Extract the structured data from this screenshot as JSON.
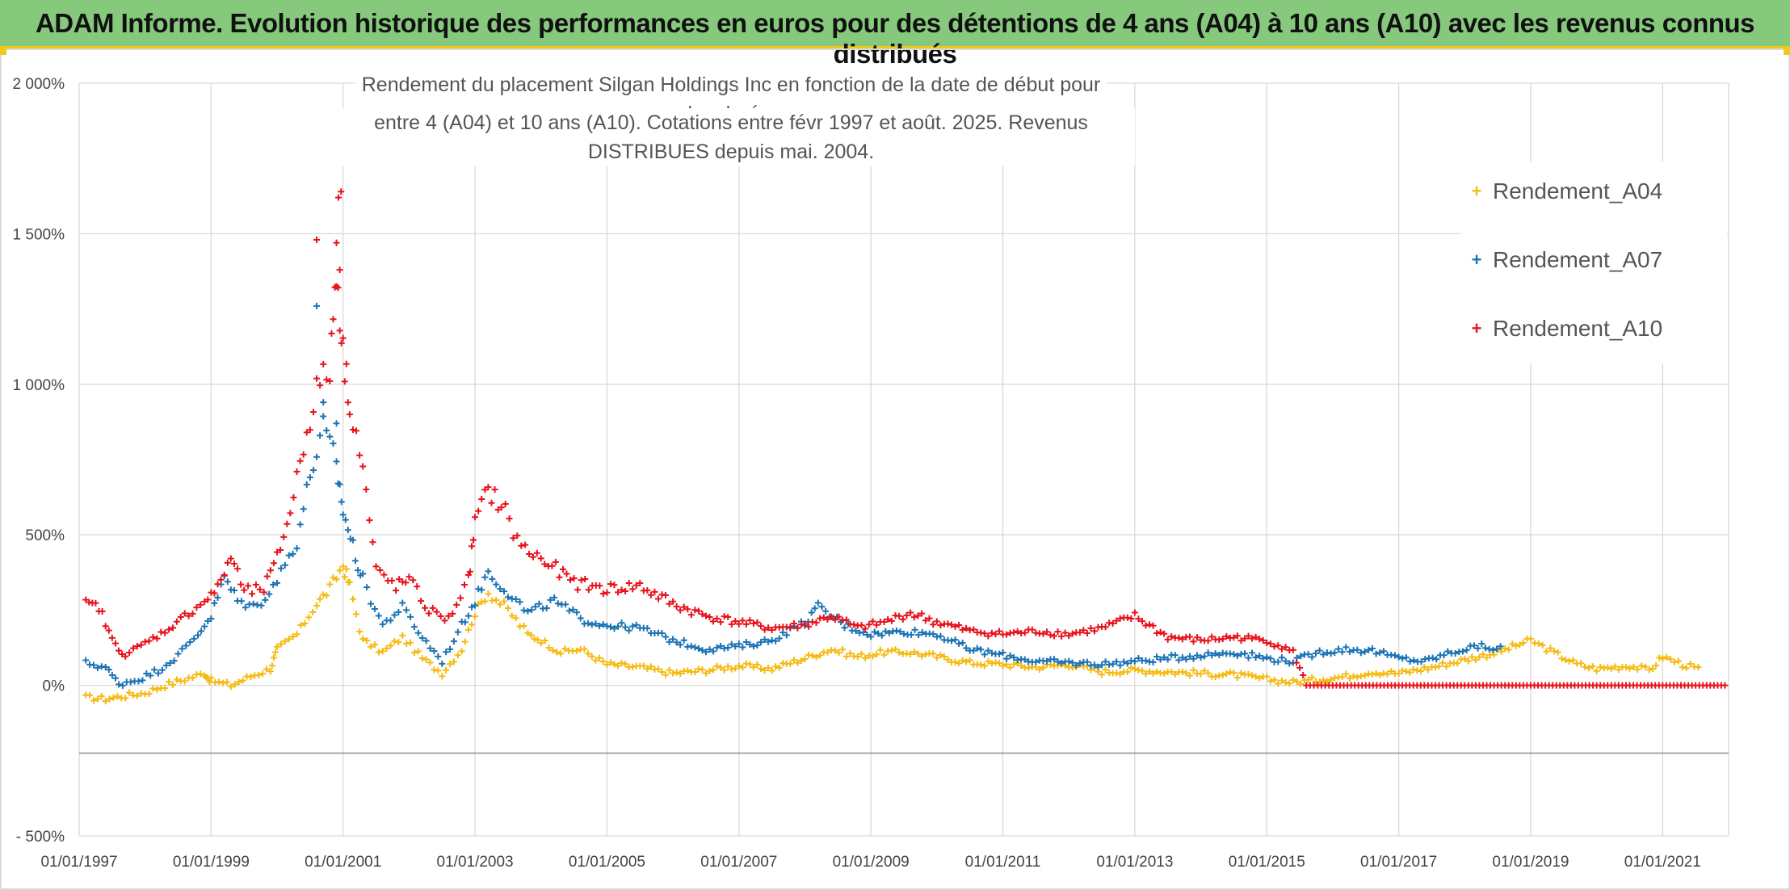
{
  "banner": {
    "title": "ADAM Informe. Evolution historique des performances en euros pour des détentions de 4 ans (A04) à 10 ans (A10) avec les revenus connus distribués"
  },
  "chart_data": {
    "type": "scatter",
    "title": "Rendement du placement Silgan Holdings Inc en fonction de la date de début pour des durées",
    "subtitle": "entre 4 (A04) et 10 ans (A10). Cotations entre févr 1997 et août. 2025. Revenus DISTRIBUES depuis mai. 2004.",
    "xlabel": "",
    "ylabel": "",
    "ylim": [
      -500,
      2000
    ],
    "xlim": [
      "01/01/1997",
      "01/01/2022"
    ],
    "grid": true,
    "legend_position": "right",
    "yticks": [
      "2 000%",
      "1 500%",
      "1 000%",
      "500%",
      "0%",
      "- 500%"
    ],
    "ytick_values": [
      2000,
      1500,
      1000,
      500,
      0,
      -500
    ],
    "xticks": [
      "01/01/1997",
      "01/01/1999",
      "01/01/2001",
      "01/01/2003",
      "01/01/2005",
      "01/01/2007",
      "01/01/2009",
      "01/01/2011",
      "01/01/2013",
      "01/01/2015",
      "01/01/2017",
      "01/01/2019",
      "01/01/2021"
    ],
    "xtick_years": [
      1997,
      1999,
      2001,
      2003,
      2005,
      2007,
      2009,
      2011,
      2013,
      2015,
      2017,
      2019,
      2021
    ],
    "series": [
      {
        "name": "Rendement_A04",
        "color": "#f5bb12",
        "points": [
          [
            1997.1,
            -40
          ],
          [
            1997.4,
            -45
          ],
          [
            1997.7,
            -35
          ],
          [
            1998.0,
            -25
          ],
          [
            1998.3,
            0
          ],
          [
            1998.6,
            20
          ],
          [
            1998.9,
            40
          ],
          [
            1999.0,
            15
          ],
          [
            1999.3,
            0
          ],
          [
            1999.6,
            30
          ],
          [
            1999.9,
            55
          ],
          [
            2000.0,
            120
          ],
          [
            2000.3,
            170
          ],
          [
            2000.6,
            270
          ],
          [
            2000.8,
            320
          ],
          [
            2001.0,
            400
          ],
          [
            2001.1,
            330
          ],
          [
            2001.3,
            150
          ],
          [
            2001.6,
            110
          ],
          [
            2001.9,
            160
          ],
          [
            2002.2,
            90
          ],
          [
            2002.5,
            40
          ],
          [
            2002.8,
            120
          ],
          [
            2003.0,
            240
          ],
          [
            2003.2,
            310
          ],
          [
            2003.5,
            250
          ],
          [
            2003.8,
            170
          ],
          [
            2004.0,
            150
          ],
          [
            2004.3,
            110
          ],
          [
            2004.6,
            120
          ],
          [
            2005.0,
            70
          ],
          [
            2005.5,
            60
          ],
          [
            2006.0,
            40
          ],
          [
            2006.5,
            50
          ],
          [
            2007.0,
            65
          ],
          [
            2007.5,
            55
          ],
          [
            2008.0,
            90
          ],
          [
            2008.4,
            120
          ],
          [
            2008.8,
            95
          ],
          [
            2009.2,
            110
          ],
          [
            2009.6,
            110
          ],
          [
            2010.0,
            95
          ],
          [
            2010.5,
            75
          ],
          [
            2011.0,
            70
          ],
          [
            2011.5,
            60
          ],
          [
            2012.0,
            70
          ],
          [
            2012.5,
            45
          ],
          [
            2013.0,
            50
          ],
          [
            2013.5,
            45
          ],
          [
            2014.0,
            40
          ],
          [
            2014.5,
            35
          ],
          [
            2015.0,
            20
          ],
          [
            2015.4,
            10
          ],
          [
            2015.8,
            20
          ],
          [
            2016.2,
            30
          ],
          [
            2016.6,
            45
          ],
          [
            2017.0,
            40
          ],
          [
            2017.5,
            60
          ],
          [
            2018.0,
            85
          ],
          [
            2018.5,
            110
          ],
          [
            2019.0,
            150
          ],
          [
            2019.3,
            115
          ],
          [
            2019.7,
            70
          ],
          [
            2020.0,
            55
          ],
          [
            2020.5,
            65
          ],
          [
            2020.8,
            50
          ],
          [
            2021.0,
            95
          ],
          [
            2021.3,
            70
          ],
          [
            2021.6,
            50
          ]
        ]
      },
      {
        "name": "Rendement_A07",
        "color": "#1c74b4",
        "points": [
          [
            1997.1,
            75
          ],
          [
            1997.4,
            60
          ],
          [
            1997.6,
            5
          ],
          [
            1997.9,
            20
          ],
          [
            1998.2,
            50
          ],
          [
            1998.5,
            100
          ],
          [
            1998.8,
            170
          ],
          [
            1999.0,
            230
          ],
          [
            1999.2,
            360
          ],
          [
            1999.4,
            280
          ],
          [
            1999.7,
            260
          ],
          [
            2000.0,
            350
          ],
          [
            2000.3,
            480
          ],
          [
            2000.5,
            700
          ],
          [
            2000.7,
            850
          ],
          [
            2000.9,
            730
          ],
          [
            2001.0,
            580
          ],
          [
            2001.15,
            460
          ],
          [
            2001.3,
            350
          ],
          [
            2001.6,
            200
          ],
          [
            2001.9,
            260
          ],
          [
            2002.2,
            160
          ],
          [
            2002.5,
            80
          ],
          [
            2002.8,
            200
          ],
          [
            2003.0,
            280
          ],
          [
            2003.2,
            380
          ],
          [
            2003.5,
            310
          ],
          [
            2003.8,
            240
          ],
          [
            2004.2,
            280
          ],
          [
            2004.6,
            220
          ],
          [
            2005.0,
            200
          ],
          [
            2005.5,
            190
          ],
          [
            2006.0,
            150
          ],
          [
            2006.5,
            120
          ],
          [
            2007.0,
            130
          ],
          [
            2007.5,
            150
          ],
          [
            2008.0,
            210
          ],
          [
            2008.2,
            260
          ],
          [
            2008.6,
            200
          ],
          [
            2009.0,
            170
          ],
          [
            2009.5,
            180
          ],
          [
            2010.0,
            170
          ],
          [
            2010.5,
            120
          ],
          [
            2011.0,
            100
          ],
          [
            2011.5,
            80
          ],
          [
            2012.0,
            75
          ],
          [
            2012.5,
            70
          ],
          [
            2013.0,
            80
          ],
          [
            2013.5,
            90
          ],
          [
            2014.0,
            100
          ],
          [
            2014.5,
            110
          ],
          [
            2015.0,
            90
          ],
          [
            2015.4,
            80
          ],
          [
            2015.8,
            110
          ],
          [
            2016.2,
            120
          ],
          [
            2016.6,
            115
          ],
          [
            2017.0,
            90
          ],
          [
            2017.4,
            80
          ],
          [
            2017.8,
            110
          ],
          [
            2018.2,
            130
          ],
          [
            2018.6,
            120
          ]
        ]
      },
      {
        "name": "Rendement_A10",
        "color": "#e8121b",
        "points": [
          [
            1997.1,
            270
          ],
          [
            1997.3,
            260
          ],
          [
            1997.5,
            150
          ],
          [
            1997.7,
            100
          ],
          [
            1998.0,
            140
          ],
          [
            1998.3,
            180
          ],
          [
            1998.6,
            230
          ],
          [
            1998.9,
            280
          ],
          [
            1999.1,
            320
          ],
          [
            1999.3,
            430
          ],
          [
            1999.5,
            310
          ],
          [
            1999.8,
            320
          ],
          [
            2000.0,
            420
          ],
          [
            2000.2,
            580
          ],
          [
            2000.4,
            800
          ],
          [
            2000.6,
            980
          ],
          [
            2000.8,
            1050
          ],
          [
            2000.9,
            1400
          ],
          [
            2001.0,
            1100
          ],
          [
            2001.1,
            950
          ],
          [
            2001.3,
            720
          ],
          [
            2001.5,
            380
          ],
          [
            2001.8,
            330
          ],
          [
            2002.0,
            350
          ],
          [
            2002.3,
            250
          ],
          [
            2002.6,
            220
          ],
          [
            2002.9,
            350
          ],
          [
            2003.0,
            540
          ],
          [
            2003.2,
            650
          ],
          [
            2003.4,
            600
          ],
          [
            2003.7,
            460
          ],
          [
            2004.0,
            420
          ],
          [
            2004.5,
            340
          ],
          [
            2005.0,
            320
          ],
          [
            2005.5,
            330
          ],
          [
            2006.0,
            270
          ],
          [
            2006.5,
            230
          ],
          [
            2007.0,
            210
          ],
          [
            2007.5,
            190
          ],
          [
            2008.0,
            200
          ],
          [
            2008.4,
            230
          ],
          [
            2008.8,
            190
          ],
          [
            2009.2,
            210
          ],
          [
            2009.6,
            240
          ],
          [
            2010.0,
            210
          ],
          [
            2010.5,
            180
          ],
          [
            2011.0,
            170
          ],
          [
            2011.5,
            180
          ],
          [
            2012.0,
            170
          ],
          [
            2012.5,
            190
          ],
          [
            2013.0,
            230
          ],
          [
            2013.5,
            160
          ],
          [
            2014.0,
            150
          ],
          [
            2014.5,
            160
          ],
          [
            2015.0,
            150
          ],
          [
            2015.4,
            110
          ],
          [
            2015.6,
            0
          ],
          [
            2016.0,
            0
          ],
          [
            2016.5,
            0
          ],
          [
            2017.0,
            0
          ],
          [
            2017.5,
            0
          ],
          [
            2018.0,
            0
          ],
          [
            2018.5,
            0
          ],
          [
            2019.0,
            0
          ],
          [
            2019.5,
            0
          ],
          [
            2020.0,
            0
          ],
          [
            2020.5,
            0
          ],
          [
            2021.0,
            0
          ],
          [
            2021.5,
            0
          ],
          [
            2022.0,
            0
          ]
        ]
      }
    ]
  }
}
